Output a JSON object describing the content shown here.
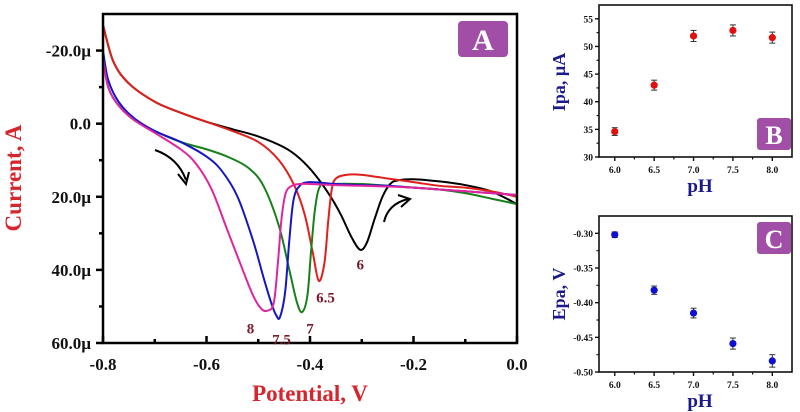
{
  "colors": {
    "panel_label_bg": "#a14fa6",
    "axis_title_main": "#d6262d",
    "axis_title_side": "#1a1a8c",
    "peak_label": "#7a1a2a",
    "ipa_points": "#e01010",
    "epa_points": "#1010d0"
  },
  "chart_data": [
    {
      "type": "line",
      "panel_label": "A",
      "title": "",
      "xlabel": "Potential, V",
      "ylabel": "Current, A",
      "xlim": [
        -0.8,
        0.0
      ],
      "ylim": [
        -30,
        60
      ],
      "y_inverted": true,
      "x_ticks": [
        -0.8,
        -0.6,
        -0.4,
        -0.2,
        0.0
      ],
      "x_tick_labels": [
        "-0.8",
        "-0.6",
        "-0.4",
        "-0.2",
        "0.0"
      ],
      "y_ticks": [
        -20,
        0,
        20,
        40,
        60
      ],
      "y_tick_labels": [
        "-20.0µ",
        "0.0",
        "20.0µ",
        "40.0µ",
        "60.0µ"
      ],
      "y_unit": "µA",
      "grid": false,
      "annotations": [
        {
          "text": "6",
          "x": -0.303,
          "y": 38.5
        },
        {
          "text": "6.5",
          "x": -0.37,
          "y": 47.5
        },
        {
          "text": "7",
          "x": -0.4,
          "y": 56
        },
        {
          "text": "7.5",
          "x": -0.455,
          "y": 59
        },
        {
          "text": "8",
          "x": -0.515,
          "y": 56
        },
        {
          "text": "forward-sweep-arrow",
          "x": -0.6,
          "y": 12
        },
        {
          "text": "reverse-sweep-arrow",
          "x": -0.18,
          "y": 18
        }
      ],
      "series": [
        {
          "name": "6",
          "color": "#000000",
          "x": [
            -0.8,
            -0.78,
            -0.75,
            -0.7,
            -0.65,
            -0.6,
            -0.55,
            -0.5,
            -0.45,
            -0.42,
            -0.39,
            -0.36,
            -0.34,
            -0.32,
            -0.303,
            -0.29,
            -0.275,
            -0.26,
            -0.245,
            -0.23,
            -0.2,
            -0.15,
            -0.1,
            -0.05,
            0.0
          ],
          "y": [
            -27,
            -17,
            -11,
            -6,
            -3,
            -0.5,
            1.5,
            3.5,
            6.5,
            9.5,
            14,
            20,
            25,
            31,
            34.5,
            32.5,
            26,
            20,
            16.5,
            15.5,
            15.2,
            15.8,
            16.8,
            18.5,
            22
          ]
        },
        {
          "name": "6.5",
          "color": "#e0201a",
          "x": [
            -0.8,
            -0.78,
            -0.75,
            -0.7,
            -0.65,
            -0.6,
            -0.55,
            -0.5,
            -0.46,
            -0.43,
            -0.41,
            -0.395,
            -0.383,
            -0.372,
            -0.365,
            -0.358,
            -0.35,
            -0.33,
            -0.3,
            -0.25,
            -0.2,
            -0.15,
            -0.1,
            -0.05,
            0.0
          ],
          "y": [
            -27,
            -17,
            -11,
            -6,
            -3,
            -0.5,
            2,
            5,
            10,
            17,
            25,
            35,
            43,
            38,
            27,
            18,
            15,
            14,
            14,
            15,
            16,
            17,
            17.5,
            18.5,
            20
          ]
        },
        {
          "name": "7",
          "color": "#17801a",
          "x": [
            -0.8,
            -0.79,
            -0.77,
            -0.74,
            -0.7,
            -0.65,
            -0.6,
            -0.56,
            -0.52,
            -0.49,
            -0.46,
            -0.44,
            -0.425,
            -0.415,
            -0.405,
            -0.398,
            -0.39,
            -0.38,
            -0.36,
            -0.3,
            -0.25,
            -0.2,
            -0.15,
            -0.1,
            -0.05,
            0.0
          ],
          "y": [
            -18,
            -10,
            -5,
            -1,
            2,
            5,
            7,
            9,
            12,
            17,
            28,
            40,
            49,
            51.5,
            47,
            35,
            23,
            17,
            16.5,
            16.5,
            17,
            17.5,
            18,
            19,
            20.5,
            22
          ]
        },
        {
          "name": "7.5",
          "color": "#1515c8",
          "x": [
            -0.8,
            -0.79,
            -0.77,
            -0.74,
            -0.7,
            -0.65,
            -0.6,
            -0.57,
            -0.54,
            -0.51,
            -0.49,
            -0.475,
            -0.465,
            -0.458,
            -0.448,
            -0.44,
            -0.432,
            -0.42,
            -0.4,
            -0.35,
            -0.3,
            -0.25,
            -0.2,
            -0.15,
            -0.1,
            -0.05,
            0.0
          ],
          "y": [
            -20,
            -12,
            -6,
            -1.5,
            2,
            5,
            9,
            13,
            20,
            32,
            42,
            49,
            52.5,
            52.9,
            46,
            32,
            21,
            17,
            16,
            16.5,
            16.8,
            17,
            17.5,
            18,
            18.5,
            19,
            19.5
          ]
        },
        {
          "name": "8",
          "color": "#e0259e",
          "x": [
            -0.8,
            -0.79,
            -0.77,
            -0.74,
            -0.7,
            -0.65,
            -0.62,
            -0.59,
            -0.56,
            -0.53,
            -0.51,
            -0.495,
            -0.483,
            -0.47,
            -0.462,
            -0.455,
            -0.447,
            -0.435,
            -0.42,
            -0.4,
            -0.35,
            -0.3,
            -0.25,
            -0.2,
            -0.15,
            -0.1,
            -0.05,
            0.0
          ],
          "y": [
            -18,
            -10,
            -5,
            -1,
            2.5,
            7,
            11,
            18,
            29,
            40,
            47,
            50.5,
            51.2,
            49,
            38,
            26,
            19,
            17,
            16.5,
            16.5,
            16.8,
            17,
            17.2,
            17.5,
            18,
            18.5,
            19,
            19.5
          ]
        }
      ]
    },
    {
      "type": "scatter",
      "panel_label": "B",
      "title": "",
      "xlabel": "pH",
      "ylabel": "Ipa, µA",
      "xlim": [
        5.8,
        8.25
      ],
      "ylim": [
        30,
        57.5
      ],
      "x_ticks": [
        6.0,
        6.5,
        7.0,
        7.5,
        8.0
      ],
      "x_tick_labels": [
        "6.0",
        "6.5",
        "7.0",
        "7.5",
        "8.0"
      ],
      "y_ticks": [
        30,
        35,
        40,
        45,
        50,
        55
      ],
      "y_tick_labels": [
        "30",
        "35",
        "40",
        "45",
        "50",
        "55"
      ],
      "grid": false,
      "series": [
        {
          "name": "Ipa",
          "color": "#e01010",
          "x": [
            6.0,
            6.5,
            7.0,
            7.5,
            8.0
          ],
          "y": [
            34.6,
            43.0,
            51.9,
            52.9,
            51.6
          ],
          "error": [
            0.7,
            0.9,
            1.0,
            1.0,
            1.0
          ]
        }
      ]
    },
    {
      "type": "scatter",
      "panel_label": "C",
      "title": "",
      "xlabel": "pH",
      "ylabel": "Epa, V",
      "xlim": [
        5.8,
        8.25
      ],
      "ylim": [
        -0.5,
        -0.275
      ],
      "x_ticks": [
        6.0,
        6.5,
        7.0,
        7.5,
        8.0
      ],
      "x_tick_labels": [
        "6.0",
        "6.5",
        "7.0",
        "7.5",
        "8.0"
      ],
      "y_ticks": [
        -0.5,
        -0.45,
        -0.4,
        -0.35,
        -0.3
      ],
      "y_tick_labels": [
        "-0.50",
        "-0.45",
        "-0.40",
        "-0.35",
        "-0.30"
      ],
      "grid": false,
      "series": [
        {
          "name": "Epa",
          "color": "#1010d0",
          "x": [
            6.0,
            6.5,
            7.0,
            7.5,
            8.0
          ],
          "y": [
            -0.302,
            -0.382,
            -0.415,
            -0.459,
            -0.484
          ],
          "error": [
            0.004,
            0.006,
            0.007,
            0.008,
            0.009
          ]
        }
      ]
    }
  ]
}
